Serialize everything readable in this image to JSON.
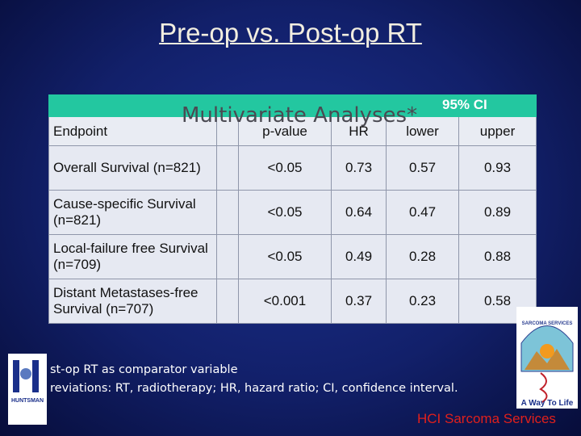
{
  "slide": {
    "title": "Pre-op vs. Post-op RT",
    "overlay": "Multivariate Analyses*",
    "table": {
      "ci_header": "95% CI",
      "header": [
        "Endpoint",
        "p-value",
        "HR",
        "lower",
        "upper"
      ],
      "rows": [
        [
          "Overall Survival (n=821)",
          "<0.05",
          "0.73",
          "0.57",
          "0.93"
        ],
        [
          "Cause-specific Survival (n=821)",
          "<0.05",
          "0.64",
          "0.47",
          "0.89"
        ],
        [
          "Local-failure free Survival (n=709)",
          "<0.05",
          "0.49",
          "0.28",
          "0.88"
        ],
        [
          "Distant Metastases-free Survival (n=707)",
          "<0.001",
          "0.37",
          "0.23",
          "0.58"
        ]
      ]
    },
    "footnotes": [
      "st-op RT as comparator variable",
      "reviations: RT, radiotherapy; HR, hazard ratio; CI, confidence interval."
    ],
    "left_logo": "HUNTSMAN",
    "right_logo": {
      "top": "SARCOMA SERVICES",
      "bottom": "A Way To Life"
    },
    "brand": "HCI Sarcoma Services"
  }
}
